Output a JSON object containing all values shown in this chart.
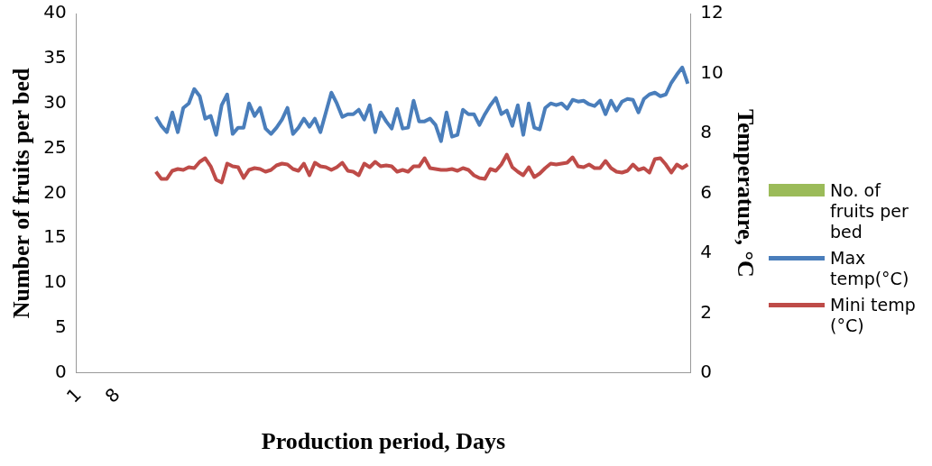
{
  "chart_data": {
    "type": "line",
    "xlabel": "Production period, Days",
    "ylabel": "Number of fruits per bed",
    "y2label": "Temperature, °C",
    "categories": [
      "1",
      null,
      null,
      null,
      null,
      null,
      null,
      "8",
      null,
      null,
      null,
      null,
      null,
      null,
      null,
      null,
      null,
      null,
      null,
      null,
      null,
      null,
      null,
      null,
      null,
      null,
      null,
      null,
      null,
      null,
      null,
      null,
      null,
      null,
      null,
      null,
      null,
      null,
      null,
      null,
      null,
      null,
      null,
      null,
      null,
      null,
      null,
      null,
      null,
      null,
      null,
      null,
      null,
      null,
      null,
      null,
      null,
      null,
      null,
      null,
      null,
      null,
      null,
      null,
      null,
      null,
      null,
      null,
      null,
      null,
      null,
      null,
      null,
      null,
      null,
      null,
      null,
      null,
      null,
      null,
      null,
      null,
      null,
      null,
      null,
      null,
      null,
      null,
      null,
      null,
      null,
      null,
      null,
      null,
      null,
      null,
      null,
      null,
      null,
      null,
      null,
      null,
      null,
      null,
      null,
      null,
      null,
      null,
      null,
      null,
      null,
      null
    ],
    "ylim": [
      0,
      40
    ],
    "yticks": [
      0,
      5,
      10,
      15,
      20,
      25,
      30,
      35,
      40
    ],
    "y2lim": [
      0,
      12
    ],
    "y2ticks": [
      0,
      2,
      4,
      6,
      8,
      10,
      12
    ],
    "grid": false,
    "legend": "right",
    "marker": "none",
    "line_style": "solid",
    "series": [
      {
        "name": "No. of fruits per bed",
        "type": "bar",
        "color": "#9bbb59",
        "values": [
          null,
          null,
          null,
          null,
          null,
          null,
          null,
          null,
          null,
          null,
          null,
          null,
          null,
          null,
          null,
          null,
          null,
          null,
          null,
          null,
          null,
          null,
          null,
          null,
          null,
          null,
          null,
          null,
          null,
          null,
          null,
          null,
          null,
          null,
          null,
          null,
          null,
          null,
          null,
          null,
          null,
          null,
          null,
          null,
          null,
          null,
          null,
          null,
          null,
          null,
          null,
          null,
          null,
          null,
          null,
          null,
          null,
          null,
          null,
          null,
          null,
          null,
          null,
          null,
          null,
          null,
          null,
          null,
          null,
          null,
          null,
          null,
          null,
          null,
          null,
          null,
          null,
          null,
          null,
          null,
          null,
          null,
          null,
          null,
          null,
          null,
          null,
          null,
          null,
          null,
          null,
          null,
          null,
          null,
          null,
          null,
          null,
          null,
          null,
          null,
          null,
          null,
          null,
          null,
          null,
          null,
          null,
          null,
          null,
          null,
          null,
          null
        ]
      },
      {
        "name": "Max temp(°C)",
        "color": "#4a7ebb",
        "values": [
          null,
          null,
          null,
          null,
          null,
          null,
          null,
          null,
          null,
          null,
          null,
          null,
          null,
          null,
          28.5,
          27.5,
          26.8,
          29,
          26.8,
          29.5,
          30,
          31.6,
          30.8,
          28.3,
          28.6,
          26.5,
          29.8,
          31,
          26.6,
          27.3,
          27.3,
          30,
          28.6,
          29.5,
          27.2,
          26.6,
          27.3,
          28.2,
          29.5,
          26.6,
          27.3,
          28.3,
          27.4,
          28.3,
          26.8,
          29,
          31.2,
          30,
          28.5,
          28.8,
          28.8,
          29.3,
          28.2,
          29.8,
          26.8,
          29,
          28,
          27.2,
          29.4,
          27.2,
          27.3,
          30.3,
          28,
          28,
          28.3,
          27.6,
          25.8,
          29,
          26.3,
          26.5,
          29.3,
          28.8,
          28.8,
          27.6,
          28.8,
          29.8,
          30.6,
          28.8,
          29.2,
          27.5,
          29.8,
          26.5,
          30,
          27.3,
          27.1,
          29.5,
          30,
          29.8,
          30,
          29.4,
          30.4,
          30.2,
          30.3,
          29.9,
          29.7,
          30.3,
          28.8,
          30.3,
          29.2,
          30.2,
          30.5,
          30.4,
          29,
          30.5,
          31,
          31.2,
          30.8,
          31,
          32.3,
          33.2,
          34,
          32.2
        ]
      },
      {
        "name": "Mini temp (°C)",
        "color": "#be4b48",
        "values": [
          null,
          null,
          null,
          null,
          null,
          null,
          null,
          null,
          null,
          null,
          null,
          null,
          null,
          null,
          22.4,
          21.6,
          21.6,
          22.5,
          22.7,
          22.6,
          22.9,
          22.8,
          23.5,
          23.9,
          23,
          21.5,
          21.2,
          23.3,
          23,
          22.9,
          21.7,
          22.6,
          22.8,
          22.7,
          22.4,
          22.6,
          23.1,
          23.3,
          23.2,
          22.7,
          22.5,
          23.3,
          22,
          23.4,
          23,
          22.9,
          22.6,
          22.9,
          23.4,
          22.5,
          22.4,
          22,
          23.3,
          22.9,
          23.5,
          23,
          23.1,
          23,
          22.4,
          22.6,
          22.4,
          23,
          23,
          23.9,
          22.8,
          22.7,
          22.6,
          22.6,
          22.7,
          22.5,
          22.8,
          22.6,
          22,
          21.7,
          21.6,
          22.7,
          22.5,
          23.2,
          24.3,
          22.9,
          22.4,
          22,
          22.9,
          21.8,
          22.2,
          22.8,
          23.3,
          23.2,
          23.3,
          23.4,
          24,
          23,
          22.9,
          23.2,
          22.8,
          22.8,
          23.6,
          22.8,
          22.4,
          22.3,
          22.5,
          23.2,
          22.6,
          22.8,
          22.3,
          23.8,
          23.9,
          23.2,
          22.3,
          23.2,
          22.8,
          23.2
        ]
      }
    ]
  }
}
